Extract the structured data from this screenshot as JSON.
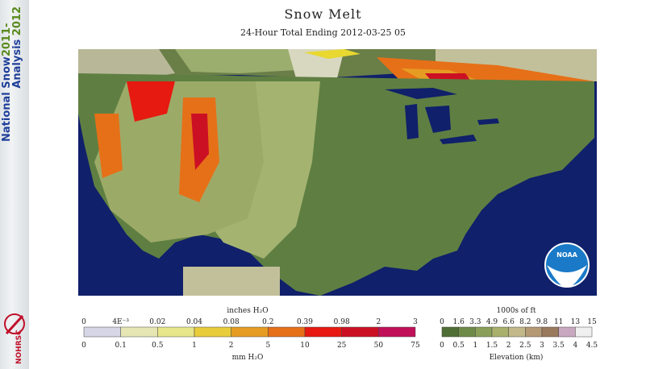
{
  "title": "Snow Melt",
  "subtitle": "24-Hour Total Ending 2012-03-25 05",
  "sidebar": {
    "line1": "National Snow",
    "line1_year": "2011-",
    "line2": "Analysis",
    "line2_year": "2012",
    "logo_text": "NOHRSC"
  },
  "noaa_logo_text": "NOAA",
  "melt_legend": {
    "top_unit": "inches H₂O",
    "bottom_unit": "mm H₂O",
    "inches": [
      "0",
      "4E⁻³",
      "0.02",
      "0.04",
      "0.08",
      "0.2",
      "0.39",
      "0.98",
      "2",
      "3"
    ],
    "mm": [
      "0",
      "0.1",
      "0.5",
      "1",
      "2",
      "5",
      "10",
      "25",
      "50",
      "75"
    ],
    "colors": [
      "#d6d6e6",
      "#e6e6b4",
      "#e8e68a",
      "#e8cc3a",
      "#e69c22",
      "#e67018",
      "#e61a10",
      "#cc1024",
      "#c0105a"
    ]
  },
  "elev_legend": {
    "top_unit": "1000s of ft",
    "bottom_unit": "Elevation (km)",
    "feet": [
      "0",
      "1.6",
      "3.3",
      "4.9",
      "6.6",
      "8.2",
      "9.8",
      "11",
      "13",
      "15"
    ],
    "km": [
      "0",
      "0.5",
      "1",
      "1.5",
      "2",
      "2.5",
      "3",
      "3.5",
      "4",
      "4.5"
    ],
    "colors": [
      "#4e6e36",
      "#6e8a48",
      "#8aa05a",
      "#a8b06c",
      "#c2b88a",
      "#b49a74",
      "#9a7a5c",
      "#c8a8c0",
      "#f0f0f0"
    ]
  }
}
